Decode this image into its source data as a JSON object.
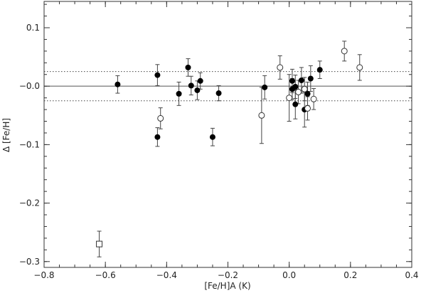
{
  "chart_data": {
    "type": "scatter",
    "title": "",
    "xlabel": "[Fe/H]A (K)",
    "ylabel": "Δ [Fe/H]",
    "xlim": [
      -0.8,
      0.4
    ],
    "ylim": [
      -0.31,
      0.145
    ],
    "xticks": [
      -0.8,
      -0.6,
      -0.4,
      -0.2,
      0.0,
      0.2,
      0.4
    ],
    "xtick_labels": [
      "−0.8",
      "−0.6",
      "−0.4",
      "−0.2",
      "0.0",
      "0.2",
      "0.4"
    ],
    "yticks": [
      0.1,
      0.0,
      -0.1,
      -0.2,
      -0.3
    ],
    "ytick_labels": [
      "0.1",
      "−0.0",
      "−0.1",
      "−0.2",
      "−0.3"
    ],
    "reference_lines": [
      {
        "y": 0.0,
        "style": "solid"
      },
      {
        "y": 0.025,
        "style": "dotted"
      },
      {
        "y": -0.025,
        "style": "dotted"
      }
    ],
    "series": [
      {
        "marker": "filled-circle",
        "points": [
          {
            "x": -0.56,
            "y": 0.003,
            "err": 0.015
          },
          {
            "x": -0.43,
            "y": 0.019,
            "err": 0.018
          },
          {
            "x": -0.43,
            "y": -0.087,
            "err": 0.016
          },
          {
            "x": -0.36,
            "y": -0.013,
            "err": 0.02
          },
          {
            "x": -0.33,
            "y": 0.032,
            "err": 0.015
          },
          {
            "x": -0.32,
            "y": 0.001,
            "err": 0.016
          },
          {
            "x": -0.3,
            "y": -0.007,
            "err": 0.016
          },
          {
            "x": -0.29,
            "y": 0.009,
            "err": 0.014
          },
          {
            "x": -0.25,
            "y": -0.087,
            "err": 0.015
          },
          {
            "x": -0.23,
            "y": -0.012,
            "err": 0.013
          },
          {
            "x": -0.08,
            "y": -0.002,
            "err": 0.02
          },
          {
            "x": 0.01,
            "y": 0.009,
            "err": 0.02
          },
          {
            "x": 0.01,
            "y": -0.005,
            "err": 0.018
          },
          {
            "x": 0.02,
            "y": -0.001,
            "err": 0.02
          },
          {
            "x": 0.02,
            "y": -0.031,
            "err": 0.025
          },
          {
            "x": 0.04,
            "y": 0.01,
            "err": 0.022
          },
          {
            "x": 0.05,
            "y": -0.04,
            "err": 0.03
          },
          {
            "x": 0.06,
            "y": -0.013,
            "err": 0.02
          },
          {
            "x": 0.07,
            "y": 0.013,
            "err": 0.022
          },
          {
            "x": 0.1,
            "y": 0.028,
            "err": 0.015
          }
        ]
      },
      {
        "marker": "open-circle",
        "points": [
          {
            "x": -0.42,
            "y": -0.055,
            "err": 0.018
          },
          {
            "x": -0.09,
            "y": -0.05,
            "err": 0.048
          },
          {
            "x": -0.03,
            "y": 0.032,
            "err": 0.02
          },
          {
            "x": 0.0,
            "y": -0.02,
            "err": 0.04
          },
          {
            "x": 0.03,
            "y": -0.01,
            "err": 0.02
          },
          {
            "x": 0.05,
            "y": -0.005,
            "err": 0.02
          },
          {
            "x": 0.06,
            "y": -0.038,
            "err": 0.02
          },
          {
            "x": 0.08,
            "y": -0.022,
            "err": 0.018
          },
          {
            "x": 0.18,
            "y": 0.06,
            "err": 0.017
          },
          {
            "x": 0.23,
            "y": 0.032,
            "err": 0.022
          }
        ]
      },
      {
        "marker": "open-square",
        "points": [
          {
            "x": -0.62,
            "y": -0.27,
            "err": 0.022
          }
        ]
      }
    ]
  }
}
